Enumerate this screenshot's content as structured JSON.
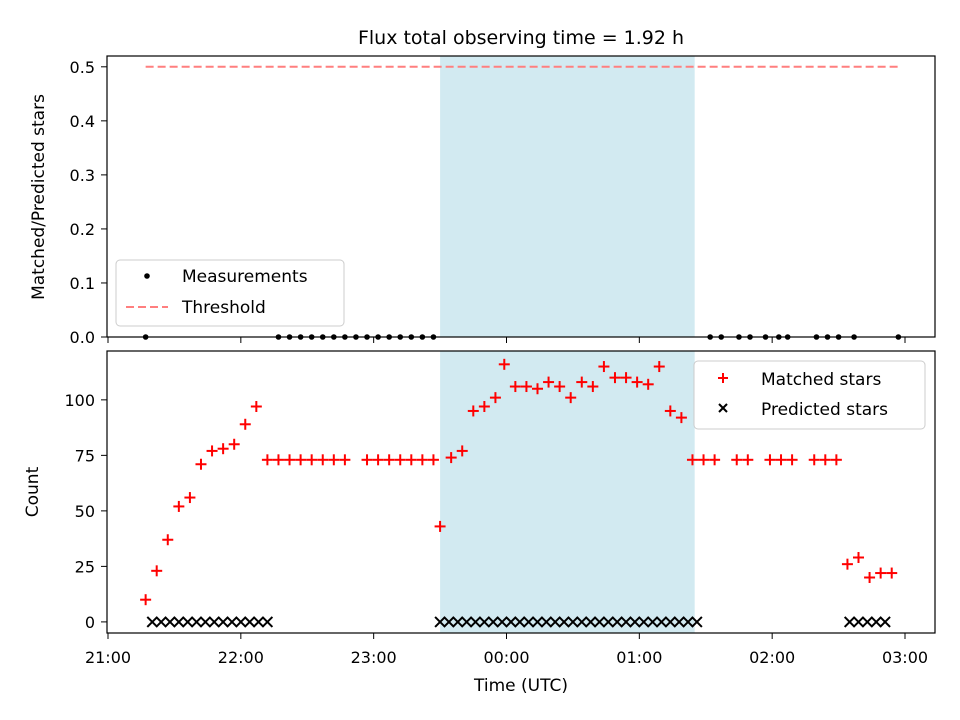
{
  "chart_data": [
    {
      "type": "scatter",
      "title": "Flux total observing time = 1.92 h",
      "xlabel": "",
      "ylabel": "Matched/Predicted stars",
      "ylim": [
        0.0,
        0.52
      ],
      "yticks": [
        "0.0",
        "0.1",
        "0.2",
        "0.3",
        "0.4",
        "0.5"
      ],
      "shaded_interval": [
        "23:30",
        "01:25"
      ],
      "shade_color": "#add8e6",
      "legend_position": "lower-left",
      "threshold": {
        "name": "Threshold",
        "value": 0.5,
        "x_start": "21:17",
        "x_end": "02:57",
        "color": "#ff7f7f"
      },
      "series": [
        {
          "name": "Measurements",
          "marker": "dot",
          "color": "#000000",
          "x": [
            "21:17",
            "22:17",
            "22:22",
            "22:27",
            "22:32",
            "22:37",
            "22:42",
            "22:47",
            "22:52",
            "22:57",
            "23:02",
            "23:07",
            "23:12",
            "23:17",
            "23:22",
            "23:27",
            "01:32",
            "01:37",
            "01:45",
            "01:50",
            "01:57",
            "02:03",
            "02:07",
            "02:20",
            "02:25",
            "02:30",
            "02:37",
            "02:57"
          ],
          "y": [
            0,
            0,
            0,
            0,
            0,
            0,
            0,
            0,
            0,
            0,
            0,
            0,
            0,
            0,
            0,
            0,
            0,
            0,
            0,
            0,
            0,
            0,
            0,
            0,
            0,
            0,
            0,
            0
          ]
        }
      ]
    },
    {
      "type": "scatter",
      "title": "",
      "xlabel": "Time (UTC)",
      "ylabel": "Count",
      "ylim": [
        -5,
        122
      ],
      "yticks": [
        "0",
        "25",
        "50",
        "75",
        "100"
      ],
      "xticks": [
        "21:00",
        "22:00",
        "23:00",
        "00:00",
        "01:00",
        "02:00",
        "03:00"
      ],
      "shaded_interval": [
        "23:30",
        "01:25"
      ],
      "shade_color": "#add8e6",
      "legend_position": "upper-right",
      "series": [
        {
          "name": "Matched stars",
          "marker": "plus",
          "color": "#ff0000",
          "x": [
            "21:17",
            "21:22",
            "21:27",
            "21:32",
            "21:37",
            "21:42",
            "21:47",
            "21:52",
            "21:57",
            "22:02",
            "22:07",
            "22:12",
            "22:17",
            "22:22",
            "22:27",
            "22:32",
            "22:37",
            "22:42",
            "22:47",
            "22:57",
            "23:02",
            "23:07",
            "23:12",
            "23:17",
            "23:22",
            "23:27",
            "23:30",
            "23:35",
            "23:40",
            "23:45",
            "23:50",
            "23:55",
            "23:59",
            "00:04",
            "00:09",
            "00:14",
            "00:19",
            "00:24",
            "00:29",
            "00:34",
            "00:39",
            "00:44",
            "00:49",
            "00:54",
            "00:59",
            "01:04",
            "01:09",
            "01:14",
            "01:19",
            "01:24",
            "01:29",
            "01:34",
            "01:44",
            "01:49",
            "01:59",
            "02:04",
            "02:09",
            "02:19",
            "02:24",
            "02:29",
            "02:34",
            "02:39",
            "02:44",
            "02:49",
            "02:54"
          ],
          "y": [
            10,
            23,
            37,
            52,
            56,
            71,
            77,
            78,
            80,
            89,
            97,
            73,
            73,
            73,
            73,
            73,
            73,
            73,
            73,
            73,
            73,
            73,
            73,
            73,
            73,
            73,
            43,
            74,
            77,
            95,
            97,
            101,
            116,
            106,
            106,
            105,
            108,
            106,
            101,
            108,
            106,
            115,
            110,
            110,
            108,
            107,
            115,
            95,
            92,
            73,
            73,
            73,
            73,
            73,
            73,
            73,
            73,
            73,
            73,
            73,
            26,
            29,
            20,
            22,
            22
          ]
        },
        {
          "name": "Predicted stars",
          "marker": "x",
          "color": "#000000",
          "x": [
            "21:20",
            "21:24",
            "21:28",
            "21:32",
            "21:36",
            "21:40",
            "21:44",
            "21:48",
            "21:52",
            "21:56",
            "22:00",
            "22:04",
            "22:08",
            "22:12",
            "23:30",
            "23:34",
            "23:38",
            "23:42",
            "23:46",
            "23:50",
            "23:54",
            "23:58",
            "00:02",
            "00:06",
            "00:10",
            "00:14",
            "00:18",
            "00:22",
            "00:26",
            "00:30",
            "00:34",
            "00:38",
            "00:42",
            "00:46",
            "00:50",
            "00:54",
            "00:58",
            "01:02",
            "01:06",
            "01:10",
            "01:14",
            "01:18",
            "01:22",
            "01:26",
            "02:35",
            "02:39",
            "02:43",
            "02:47",
            "02:51"
          ],
          "y": [
            0,
            0,
            0,
            0,
            0,
            0,
            0,
            0,
            0,
            0,
            0,
            0,
            0,
            0,
            0,
            0,
            0,
            0,
            0,
            0,
            0,
            0,
            0,
            0,
            0,
            0,
            0,
            0,
            0,
            0,
            0,
            0,
            0,
            0,
            0,
            0,
            0,
            0,
            0,
            0,
            0,
            0,
            0,
            0,
            0,
            0,
            0,
            0,
            0
          ]
        }
      ]
    }
  ]
}
